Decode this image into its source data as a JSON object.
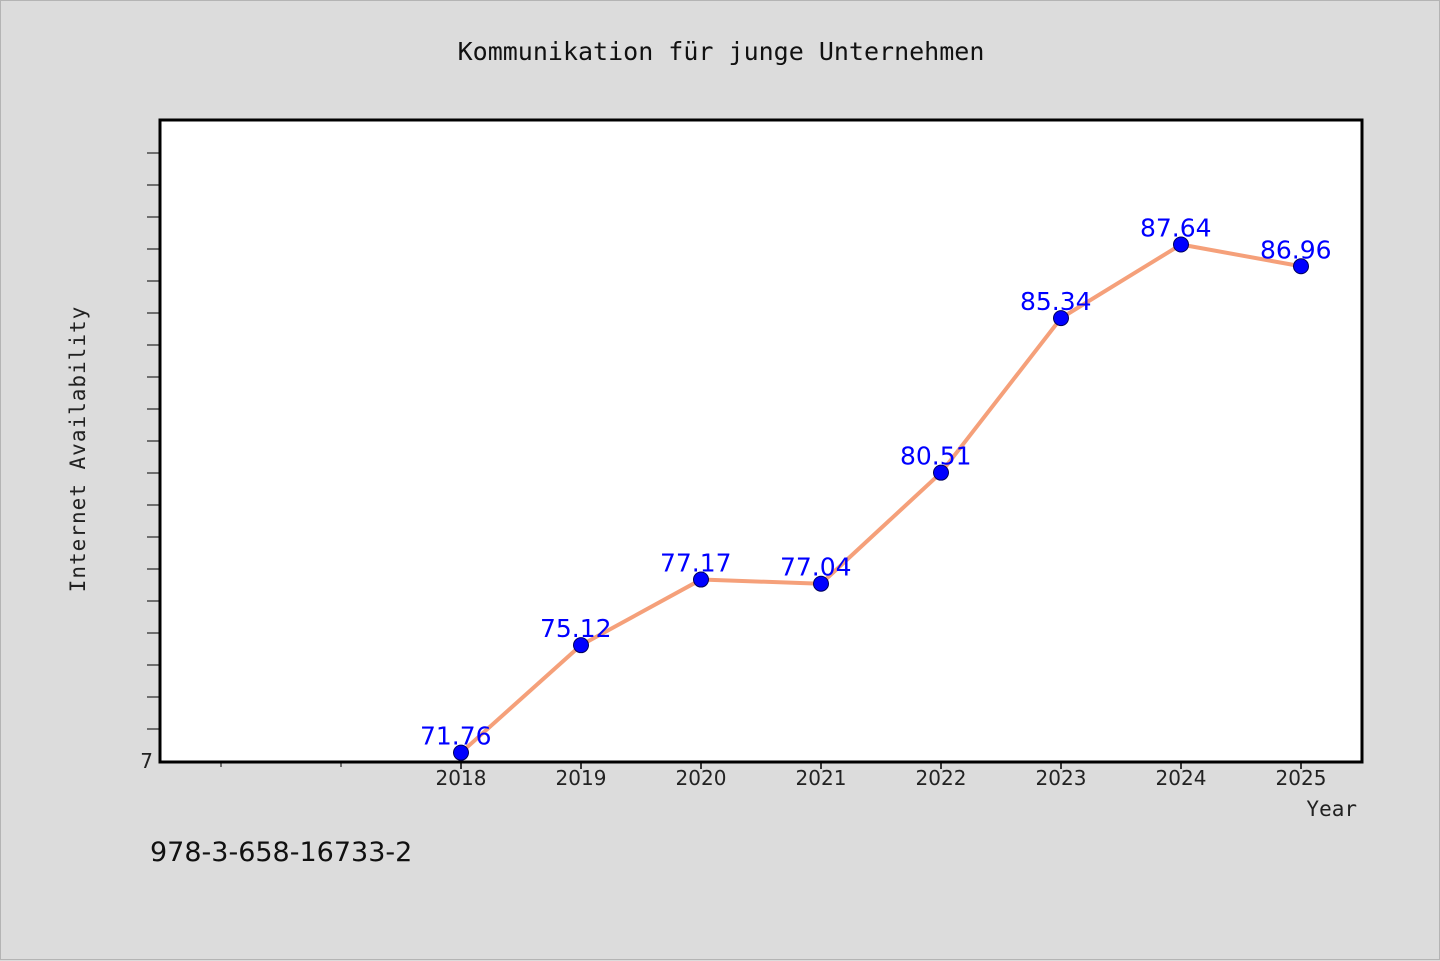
{
  "chart_data": {
    "type": "line",
    "title": "Kommunikation für junge Unternehmen",
    "xlabel": "Year",
    "ylabel": "Internet Availability",
    "categories": [
      "2018",
      "2019",
      "2020",
      "2021",
      "2022",
      "2023",
      "2024",
      "2025"
    ],
    "values": [
      71.76,
      75.12,
      77.17,
      77.04,
      80.51,
      85.34,
      87.64,
      86.96
    ],
    "data_labels": [
      "71.76",
      "75.12",
      "77.17",
      "77.04",
      "80.51",
      "85.34",
      "87.64",
      "86.96"
    ],
    "y_tick_labels": [
      "7"
    ],
    "ylim": [
      71.5,
      91.5
    ],
    "grid": false,
    "line_color": "#f5a07a",
    "marker_color": "#0000ff",
    "label_color": "#0000ff",
    "plot_background": "#ffffff"
  },
  "footer": {
    "isbn": "978-3-658-16733-2"
  }
}
